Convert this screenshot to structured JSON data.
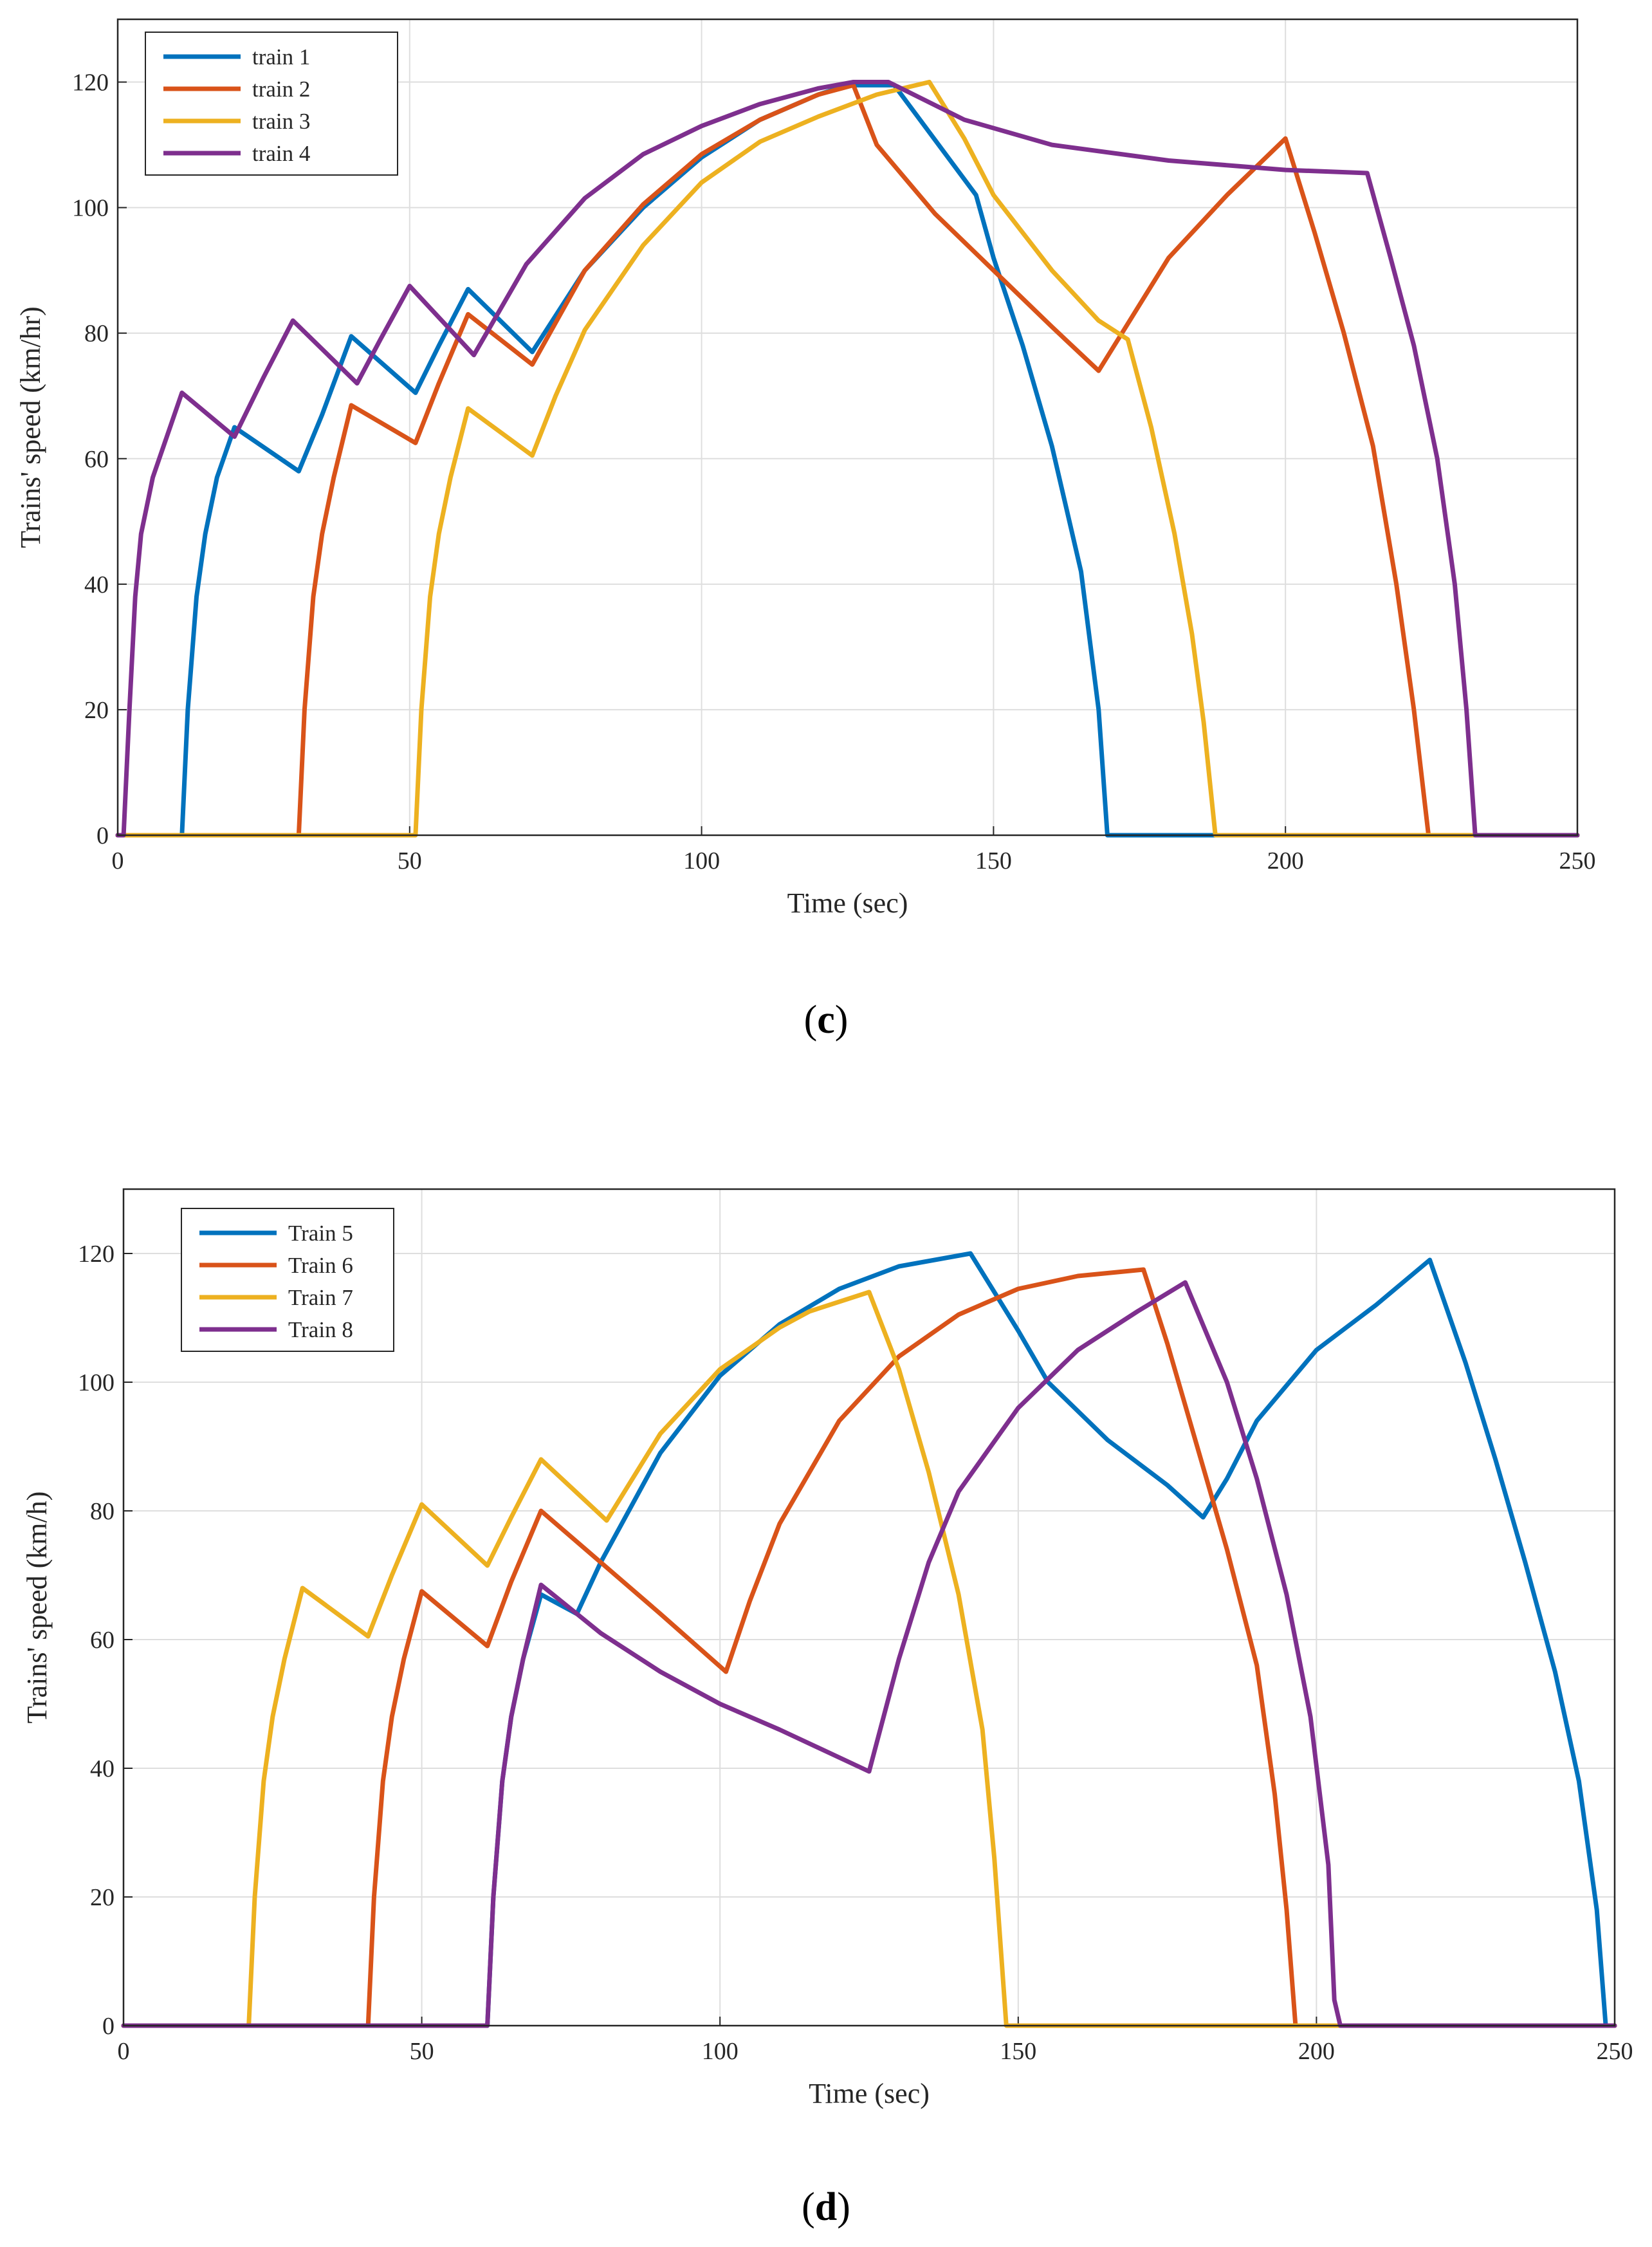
{
  "chart_data": [
    {
      "type": "line",
      "caption": "(c)",
      "caption_letter": "c",
      "xlabel": "Time (sec)",
      "ylabel": "Trains' speed (km/hr)",
      "xlim": [
        0,
        250
      ],
      "ylim": [
        0,
        130
      ],
      "xticks": [
        0,
        50,
        100,
        150,
        200,
        250
      ],
      "yticks": [
        0,
        20,
        40,
        60,
        80,
        100,
        120
      ],
      "grid": true,
      "legend": "top-left",
      "series": [
        {
          "name": "train 1",
          "color": "#0072BD",
          "points": [
            [
              0,
              0
            ],
            [
              11,
              0
            ],
            [
              12,
              20
            ],
            [
              13.5,
              38
            ],
            [
              15,
              48
            ],
            [
              17,
              57
            ],
            [
              20,
              65
            ],
            [
              31,
              58
            ],
            [
              35,
              67
            ],
            [
              40,
              79.5
            ],
            [
              51,
              70.5
            ],
            [
              55,
              78
            ],
            [
              60,
              87
            ],
            [
              71,
              77
            ],
            [
              80,
              90
            ],
            [
              90,
              100
            ],
            [
              100,
              108
            ],
            [
              110,
              114
            ],
            [
              120,
              118
            ],
            [
              125,
              119.5
            ],
            [
              133,
              119.5
            ],
            [
              147,
              102
            ],
            [
              150,
              92
            ],
            [
              155,
              78
            ],
            [
              160,
              62
            ],
            [
              165,
              42
            ],
            [
              168,
              20
            ],
            [
              169.5,
              0
            ],
            [
              250,
              0
            ]
          ]
        },
        {
          "name": "train 2",
          "color": "#D95319",
          "points": [
            [
              0,
              0
            ],
            [
              31,
              0
            ],
            [
              32,
              20
            ],
            [
              33.5,
              38
            ],
            [
              35,
              48
            ],
            [
              37,
              57
            ],
            [
              40,
              68.5
            ],
            [
              51,
              62.5
            ],
            [
              55,
              72
            ],
            [
              60,
              83
            ],
            [
              71,
              75
            ],
            [
              80,
              90
            ],
            [
              90,
              100.5
            ],
            [
              100,
              108.5
            ],
            [
              110,
              114
            ],
            [
              120,
              118
            ],
            [
              126,
              119.5
            ],
            [
              130,
              110
            ],
            [
              140,
              99
            ],
            [
              150,
              90
            ],
            [
              160,
              81
            ],
            [
              168,
              74
            ],
            [
              172,
              80
            ],
            [
              180,
              92
            ],
            [
              190,
              102
            ],
            [
              200,
              111
            ],
            [
              205,
              96
            ],
            [
              210,
              80
            ],
            [
              215,
              62
            ],
            [
              219,
              40
            ],
            [
              222,
              20
            ],
            [
              224.5,
              0
            ],
            [
              250,
              0
            ]
          ]
        },
        {
          "name": "train 3",
          "color": "#EDB120",
          "points": [
            [
              0,
              0
            ],
            [
              51,
              0
            ],
            [
              52,
              20
            ],
            [
              53.5,
              38
            ],
            [
              55,
              48
            ],
            [
              57,
              57
            ],
            [
              60,
              68
            ],
            [
              71,
              60.5
            ],
            [
              75,
              70
            ],
            [
              80,
              80.5
            ],
            [
              90,
              94
            ],
            [
              100,
              104
            ],
            [
              110,
              110.5
            ],
            [
              120,
              114.5
            ],
            [
              130,
              118
            ],
            [
              139,
              120
            ],
            [
              145,
              111
            ],
            [
              150,
              102
            ],
            [
              160,
              90
            ],
            [
              168,
              82
            ],
            [
              173,
              79
            ],
            [
              177,
              65
            ],
            [
              181,
              48
            ],
            [
              184,
              32
            ],
            [
              186,
              18
            ],
            [
              188,
              0
            ],
            [
              250,
              0
            ]
          ]
        },
        {
          "name": "train 4",
          "color": "#7E2F8E",
          "points": [
            [
              0,
              0
            ],
            [
              1,
              0
            ],
            [
              2,
              20
            ],
            [
              3,
              38
            ],
            [
              4,
              48
            ],
            [
              6,
              57
            ],
            [
              11,
              70.5
            ],
            [
              20,
              63.5
            ],
            [
              25,
              73
            ],
            [
              30,
              82
            ],
            [
              41,
              72
            ],
            [
              45,
              79
            ],
            [
              50,
              87.5
            ],
            [
              61,
              76.5
            ],
            [
              70,
              91
            ],
            [
              80,
              101.5
            ],
            [
              90,
              108.5
            ],
            [
              100,
              113
            ],
            [
              110,
              116.5
            ],
            [
              120,
              119
            ],
            [
              126,
              120
            ],
            [
              132,
              120
            ],
            [
              145,
              114
            ],
            [
              160,
              110
            ],
            [
              180,
              107.5
            ],
            [
              200,
              106
            ],
            [
              214,
              105.5
            ],
            [
              218,
              92
            ],
            [
              222,
              78
            ],
            [
              226,
              60
            ],
            [
              229,
              40
            ],
            [
              231,
              20
            ],
            [
              232.5,
              0
            ],
            [
              250,
              0
            ]
          ]
        }
      ]
    },
    {
      "type": "line",
      "caption": "(d)",
      "caption_letter": "d",
      "xlabel": "Time (sec)",
      "ylabel": "Trains' speed (km/h)",
      "xlim": [
        0,
        250
      ],
      "ylim": [
        0,
        130
      ],
      "xticks": [
        0,
        50,
        100,
        150,
        200,
        250
      ],
      "yticks": [
        0,
        20,
        40,
        60,
        80,
        100,
        120
      ],
      "grid": true,
      "legend": "top-left",
      "series": [
        {
          "name": "Train 5",
          "color": "#0072BD",
          "points": [
            [
              0,
              0
            ],
            [
              61,
              0
            ],
            [
              62,
              20
            ],
            [
              63.5,
              38
            ],
            [
              65,
              48
            ],
            [
              67,
              57
            ],
            [
              70,
              67
            ],
            [
              76,
              64
            ],
            [
              80,
              72
            ],
            [
              90,
              89
            ],
            [
              100,
              101
            ],
            [
              110,
              109
            ],
            [
              120,
              114.5
            ],
            [
              130,
              118
            ],
            [
              142,
              120
            ],
            [
              150,
              108
            ],
            [
              155,
              100
            ],
            [
              165,
              91
            ],
            [
              175,
              84
            ],
            [
              181,
              79
            ],
            [
              185,
              85
            ],
            [
              190,
              94
            ],
            [
              200,
              105
            ],
            [
              210,
              112
            ],
            [
              219,
              119
            ],
            [
              225,
              103
            ],
            [
              230,
              88
            ],
            [
              235,
              72
            ],
            [
              240,
              55
            ],
            [
              244,
              38
            ],
            [
              247,
              18
            ],
            [
              248.5,
              0
            ],
            [
              250,
              0
            ]
          ]
        },
        {
          "name": "Train 6",
          "color": "#D95319",
          "points": [
            [
              0,
              0
            ],
            [
              41,
              0
            ],
            [
              42,
              20
            ],
            [
              43.5,
              38
            ],
            [
              45,
              48
            ],
            [
              47,
              57
            ],
            [
              50,
              67.5
            ],
            [
              61,
              59
            ],
            [
              65,
              69
            ],
            [
              70,
              80
            ],
            [
              80,
              72
            ],
            [
              90,
              64
            ],
            [
              101,
              55
            ],
            [
              105,
              66
            ],
            [
              110,
              78
            ],
            [
              120,
              94
            ],
            [
              130,
              104
            ],
            [
              140,
              110.5
            ],
            [
              150,
              114.5
            ],
            [
              160,
              116.5
            ],
            [
              171,
              117.5
            ],
            [
              175,
              106
            ],
            [
              180,
              90
            ],
            [
              185,
              74
            ],
            [
              190,
              56
            ],
            [
              193,
              36
            ],
            [
              195,
              18
            ],
            [
              196.5,
              0
            ],
            [
              250,
              0
            ]
          ]
        },
        {
          "name": "Train 7",
          "color": "#EDB120",
          "points": [
            [
              0,
              0
            ],
            [
              21,
              0
            ],
            [
              22,
              20
            ],
            [
              23.5,
              38
            ],
            [
              25,
              48
            ],
            [
              27,
              57
            ],
            [
              30,
              68
            ],
            [
              41,
              60.5
            ],
            [
              45,
              70
            ],
            [
              50,
              81
            ],
            [
              61,
              71.5
            ],
            [
              65,
              79
            ],
            [
              70,
              88
            ],
            [
              81,
              78.5
            ],
            [
              90,
              92
            ],
            [
              100,
              102
            ],
            [
              110,
              108.5
            ],
            [
              115,
              111
            ],
            [
              125,
              114
            ],
            [
              130,
              102
            ],
            [
              135,
              86
            ],
            [
              140,
              67
            ],
            [
              144,
              46
            ],
            [
              146,
              26
            ],
            [
              148,
              0
            ],
            [
              250,
              0
            ]
          ]
        },
        {
          "name": "Train 8",
          "color": "#7E2F8E",
          "points": [
            [
              0,
              0
            ],
            [
              61,
              0
            ],
            [
              62,
              20
            ],
            [
              63.5,
              38
            ],
            [
              65,
              48
            ],
            [
              67,
              57
            ],
            [
              70,
              68.5
            ],
            [
              80,
              61
            ],
            [
              90,
              55
            ],
            [
              100,
              50
            ],
            [
              110,
              46
            ],
            [
              125,
              39.5
            ],
            [
              130,
              57
            ],
            [
              135,
              72
            ],
            [
              140,
              83
            ],
            [
              150,
              96
            ],
            [
              160,
              105
            ],
            [
              170,
              111
            ],
            [
              178,
              115.5
            ],
            [
              185,
              100
            ],
            [
              190,
              85
            ],
            [
              195,
              67
            ],
            [
              199,
              48
            ],
            [
              202,
              25
            ],
            [
              203,
              4
            ],
            [
              204,
              0
            ],
            [
              250,
              0
            ]
          ]
        }
      ]
    }
  ]
}
